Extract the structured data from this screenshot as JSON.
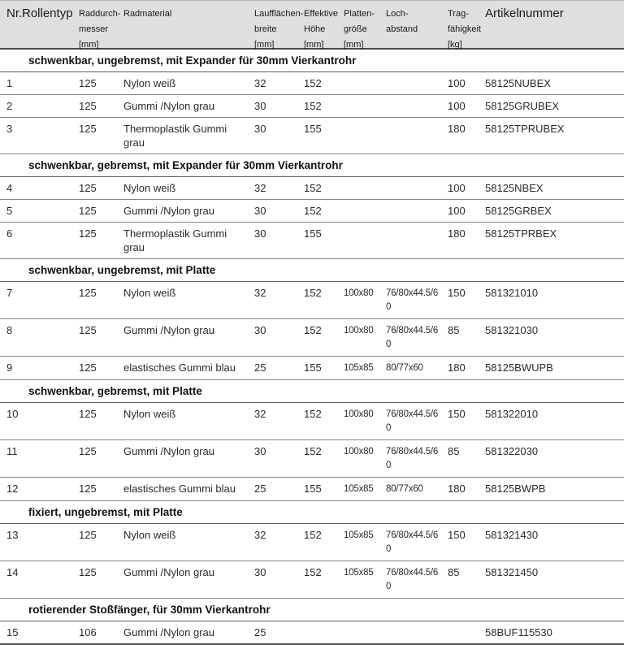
{
  "colors": {
    "header_bg": "#e0dfdd",
    "heavy_line": "#4a4a4a",
    "row_line": "#858585",
    "text": "#1c1c1c"
  },
  "table": {
    "columns": [
      {
        "field": "nr",
        "label": "Nr."
      },
      {
        "field": "rollentyp",
        "label": "Rollentyp"
      },
      {
        "field": "raddurchmesser",
        "lines": [
          "Raddurch-",
          "messer",
          "[mm]"
        ]
      },
      {
        "field": "radmaterial",
        "label": "Radmaterial"
      },
      {
        "field": "laufflaechenbreite",
        "lines": [
          "Laufflächen-",
          "breite",
          "[mm]"
        ]
      },
      {
        "field": "effektive_hoehe",
        "lines": [
          "Effektive",
          "Höhe",
          "[mm]"
        ]
      },
      {
        "field": "plattengroesse",
        "lines": [
          "Platten-",
          "größe",
          "[mm]"
        ]
      },
      {
        "field": "lochabstand",
        "lines": [
          "Loch-",
          "abstand"
        ]
      },
      {
        "field": "tragfaehigkeit",
        "lines": [
          "Trag-",
          "fähigkeit",
          "[kg]"
        ]
      },
      {
        "field": "artikelnummer",
        "label": "Artikelnummer"
      }
    ],
    "sections": [
      {
        "title": "schwenkbar, ungebremst, mit Expander für 30mm Vierkantrohr",
        "rows": [
          [
            "1",
            "",
            "125",
            "Nylon weiß",
            "32",
            "152",
            "",
            "",
            "100",
            "58125NUBEX"
          ],
          [
            "2",
            "",
            "125",
            "Gummi /Nylon grau",
            "30",
            "152",
            "",
            "",
            "100",
            "58125GRUBEX"
          ],
          [
            "3",
            "",
            "125",
            "Thermoplastik Gummi grau",
            "30",
            "155",
            "",
            "",
            "180",
            "58125TPRUBEX"
          ]
        ]
      },
      {
        "title": "schwenkbar, gebremst, mit Expander für 30mm Vierkantrohr",
        "rows": [
          [
            "4",
            "",
            "125",
            "Nylon weiß",
            "32",
            "152",
            "",
            "",
            "100",
            "58125NBEX"
          ],
          [
            "5",
            "",
            "125",
            "Gummi /Nylon grau",
            "30",
            "152",
            "",
            "",
            "100",
            "58125GRBEX"
          ],
          [
            "6",
            "",
            "125",
            "Thermoplastik Gummi grau",
            "30",
            "155",
            "",
            "",
            "180",
            "58125TPRBEX"
          ]
        ]
      },
      {
        "title": "schwenkbar, ungebremst, mit Platte",
        "rows": [
          [
            "7",
            "",
            "125",
            "Nylon weiß",
            "32",
            "152",
            "100x80",
            "76/80x44.5/60",
            "150",
            "581321010"
          ],
          [
            "8",
            "",
            "125",
            "Gummi /Nylon grau",
            "30",
            "152",
            "100x80",
            "76/80x44.5/60",
            "85",
            "581321030"
          ],
          [
            "9",
            "",
            "125",
            "elastisches Gummi blau",
            "25",
            "155",
            "105x85",
            "80/77x60",
            "180",
            "58125BWUPB"
          ]
        ]
      },
      {
        "title": "schwenkbar, gebremst, mit Platte",
        "rows": [
          [
            "10",
            "",
            "125",
            "Nylon weiß",
            "32",
            "152",
            "100x80",
            "76/80x44.5/60",
            "150",
            "581322010"
          ],
          [
            "11",
            "",
            "125",
            "Gummi /Nylon grau",
            "30",
            "152",
            "100x80",
            "76/80x44.5/60",
            "85",
            "581322030"
          ],
          [
            "12",
            "",
            "125",
            "elastisches Gummi blau",
            "25",
            "155",
            "105x85",
            "80/77x60",
            "180",
            "58125BWPB"
          ]
        ]
      },
      {
        "title": "fixiert, ungebremst, mit Platte",
        "rows": [
          [
            "13",
            "",
            "125",
            "Nylon weiß",
            "32",
            "152",
            "105x85",
            "76/80x44.5/60",
            "150",
            "581321430"
          ],
          [
            "14",
            "",
            "125",
            "Gummi /Nylon grau",
            "30",
            "152",
            "105x85",
            "76/80x44.5/60",
            "85",
            "581321450"
          ]
        ]
      },
      {
        "title": "rotierender Stoßfänger, für 30mm Vierkantrohr",
        "rows": [
          [
            "15",
            "",
            "106",
            "Gummi /Nylon grau",
            "25",
            "",
            "",
            "",
            "",
            "58BUF115530"
          ]
        ]
      }
    ]
  }
}
